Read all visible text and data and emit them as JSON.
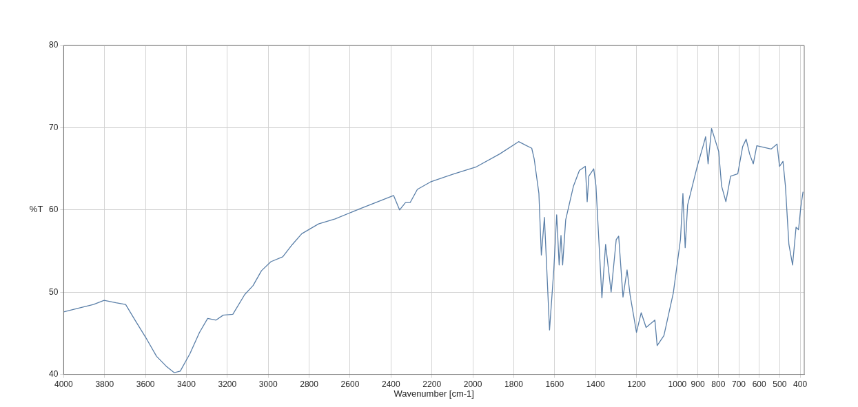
{
  "chart_data": {
    "type": "line",
    "xlabel": "Wavenumber [cm-1]",
    "ylabel": "%T",
    "xlim": [
      4000,
      380
    ],
    "ylim": [
      40,
      80
    ],
    "xticks": [
      4000,
      3800,
      3600,
      3400,
      3200,
      3000,
      2800,
      2600,
      2400,
      2200,
      2000,
      1800,
      1600,
      1400,
      1200,
      1000,
      900,
      800,
      700,
      600,
      500,
      400
    ],
    "yticks": [
      40,
      50,
      60,
      70,
      80
    ],
    "grid": true,
    "legend": false,
    "marker": "none",
    "line_style": "solid",
    "series": [
      {
        "color": "#5a7fa8",
        "x": [
          4000,
          3919,
          3854,
          3802,
          3744,
          3697,
          3651,
          3592,
          3546,
          3499,
          3459,
          3430,
          3383,
          3336,
          3296,
          3255,
          3220,
          3173,
          3115,
          3074,
          3033,
          2987,
          2929,
          2882,
          2836,
          2754,
          2673,
          2556,
          2387,
          2358,
          2329,
          2306,
          2271,
          2207,
          2091,
          1986,
          1869,
          1776,
          1712,
          1700,
          1677,
          1665,
          1650,
          1625,
          1604,
          1590,
          1578,
          1569,
          1561,
          1546,
          1508,
          1479,
          1450,
          1441,
          1433,
          1409,
          1398,
          1369,
          1351,
          1324,
          1299,
          1287,
          1266,
          1246,
          1231,
          1200,
          1177,
          1153,
          1110,
          1099,
          1066,
          1020,
          985,
          973,
          962,
          950,
          903,
          874,
          862,
          850,
          833,
          798,
          784,
          763,
          740,
          705,
          681,
          664,
          647,
          629,
          612,
          542,
          513,
          501,
          484,
          472,
          455,
          437,
          420,
          408,
          397,
          386
        ],
        "values": [
          47.6,
          48.1,
          48.5,
          49.0,
          48.7,
          48.5,
          46.6,
          44.2,
          42.2,
          41.0,
          40.2,
          40.4,
          42.5,
          45.1,
          46.8,
          46.6,
          47.2,
          47.3,
          49.7,
          50.8,
          52.6,
          53.7,
          54.3,
          55.8,
          57.1,
          58.3,
          58.9,
          60.1,
          61.75,
          60.0,
          60.9,
          60.9,
          62.5,
          63.4,
          64.4,
          65.2,
          66.8,
          68.3,
          67.5,
          66.2,
          62.0,
          54.5,
          59.1,
          45.4,
          52.8,
          59.4,
          53.3,
          56.9,
          53.3,
          58.8,
          62.9,
          64.8,
          65.3,
          61.0,
          64.1,
          65.0,
          62.9,
          49.3,
          55.8,
          50.0,
          56.4,
          56.8,
          49.4,
          52.7,
          49.6,
          45.1,
          47.5,
          45.7,
          46.6,
          43.5,
          44.7,
          49.9,
          56.4,
          62.0,
          55.4,
          60.6,
          65.3,
          67.8,
          68.9,
          65.6,
          69.9,
          67.1,
          62.9,
          61.0,
          64.1,
          64.4,
          67.7,
          68.6,
          66.8,
          65.6,
          67.8,
          67.4,
          68.0,
          65.3,
          65.9,
          62.9,
          55.8,
          53.3,
          57.9,
          57.6,
          60.3,
          62.2
        ]
      }
    ]
  }
}
